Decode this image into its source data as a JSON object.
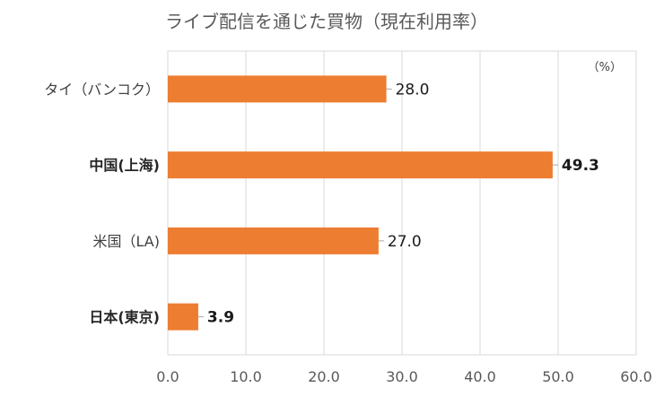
{
  "chart_data": {
    "type": "bar",
    "orientation": "horizontal",
    "title": "ライブ配信を通じた買物（現在利用率）",
    "unit_label": "（%）",
    "categories": [
      "タイ（バンコク）",
      "中国(上海)",
      "米国（LA)",
      "日本(東京)"
    ],
    "category_bold": [
      false,
      true,
      false,
      true
    ],
    "values": [
      28.0,
      49.3,
      27.0,
      3.9
    ],
    "value_labels": [
      "28.0",
      "49.3",
      "27.0",
      "3.9"
    ],
    "value_label_colors": [
      "#1a1a1a",
      "#c00000",
      "#1a1a1a",
      "#1f6fa8"
    ],
    "value_label_bold": [
      false,
      true,
      false,
      true
    ],
    "bar_color": "#ed7d31",
    "xlim": [
      0,
      60
    ],
    "xticks": [
      "0.0",
      "10.0",
      "20.0",
      "30.0",
      "40.0",
      "50.0",
      "60.0"
    ],
    "grid": true
  }
}
